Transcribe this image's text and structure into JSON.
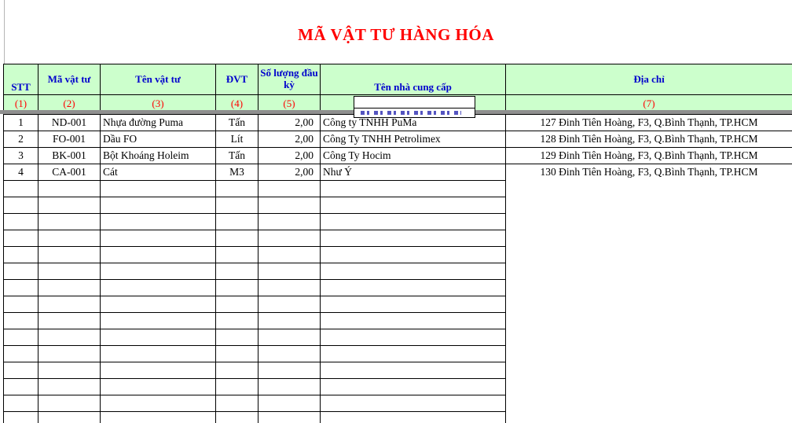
{
  "title": "MÃ VẬT TƯ HÀNG HÓA",
  "colors": {
    "header_bg": "#CCFFCC",
    "header_text": "#0000CC",
    "label_red": "#FF0000",
    "grid": "#000000",
    "split_bar": "#8F8F8F",
    "fragment_blue": "#2A2AB0"
  },
  "table": {
    "columns": [
      {
        "key": "stt",
        "label": "STT",
        "num": "(1)"
      },
      {
        "key": "ma",
        "label": "Mã vật tư",
        "num": "(2)"
      },
      {
        "key": "ten",
        "label": "Tên vật tư",
        "num": "(3)"
      },
      {
        "key": "dvt",
        "label": "ĐVT",
        "num": "(4)"
      },
      {
        "key": "soluong",
        "label": "Số lượng đầu kỳ",
        "num": "(5)"
      },
      {
        "key": "ncc",
        "label": "Tên nhà cung cấp",
        "num": ""
      },
      {
        "key": "diachi",
        "label": "Địa chỉ",
        "num": "(7)"
      }
    ],
    "rows": [
      [
        "1",
        "ND-001",
        "Nhựa đường Puma",
        "Tấn",
        "2,00",
        "Công ty TNHH PuMa",
        "127 Đinh Tiên Hoàng, F3, Q.Bình Thạnh, TP.HCM"
      ],
      [
        "2",
        "FO-001",
        "Dầu FO",
        "Lít",
        "2,00",
        "Công Ty TNHH Petrolimex",
        "128 Đinh Tiên Hoàng, F3, Q.Bình Thạnh, TP.HCM"
      ],
      [
        "3",
        "BK-001",
        "Bột Khoáng Holeim",
        "Tấn",
        "2,00",
        "Công Ty Hocim",
        "129 Đinh Tiên Hoàng, F3, Q.Bình Thạnh, TP.HCM"
      ],
      [
        "4",
        "CA-001",
        "Cát",
        "M3",
        "2,00",
        "Như Ý",
        "130 Đinh Tiên Hoàng, F3, Q.Bình Thạnh, TP.HCM"
      ]
    ],
    "empty_row_count": 15
  }
}
